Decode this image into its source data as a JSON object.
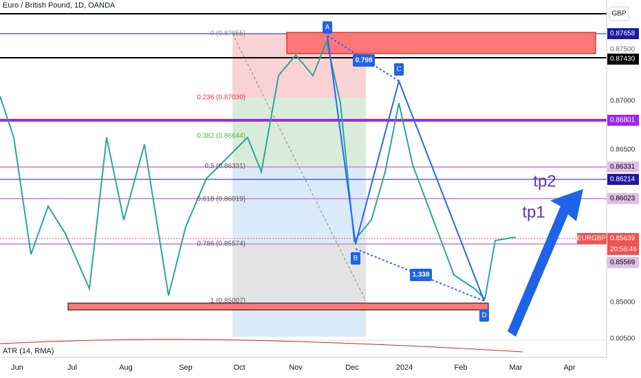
{
  "header": {
    "title": "Euro / British Pound, 1D, OANDA"
  },
  "price_axis": {
    "currency": "GBP",
    "labels": [
      "0.87658",
      "0.87500",
      "0.87430",
      "0.87000",
      "0.86801",
      "0.86500",
      "0.86331",
      "0.86214",
      "0.86023",
      "0.85639",
      "0.85569",
      "0.85000",
      "0.00500"
    ],
    "symbol": "EURGBP",
    "countdown": "20:56:46"
  },
  "time_axis": {
    "labels": [
      "Jun",
      "Jul",
      "Aug",
      "Sep",
      "Oct",
      "Nov",
      "Dec",
      "2024",
      "Feb",
      "Mar",
      "Apr"
    ]
  },
  "fib_levels": [
    "0 (0.87655)",
    "0.236 (0.87030)",
    "0.382 (0.86644)",
    "0.5 (0.86331)",
    "0.618 (0.86019)",
    "0.786 (0.85574)",
    "1 (0.85007)"
  ],
  "pattern": {
    "points": [
      "A",
      "B",
      "C",
      "D"
    ],
    "ratios": [
      "0.798",
      "1.338"
    ]
  },
  "targets": [
    "tp2",
    "tp1"
  ],
  "indicator": {
    "label": "ATR (14, RMA)"
  }
}
